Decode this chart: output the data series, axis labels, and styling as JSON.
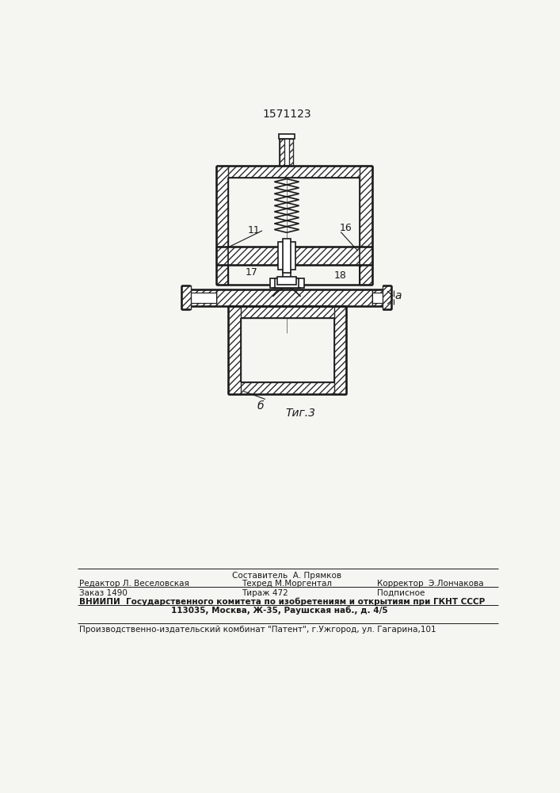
{
  "title": "1571123",
  "fig_label": "Τиг.3",
  "label_a": "a",
  "label_b": "б",
  "footer_line1_center": "Составитель  А. Прямков",
  "footer_line2_left": "Редактор Л. Веселовская",
  "footer_line2_center": "Техред М.Моргентал",
  "footer_line2_right": "Корректор  Э.Лончакова",
  "footer_line3_left": "Заказ 1490",
  "footer_line3_center": "Тираж 472",
  "footer_line3_right": "Подписное",
  "footer_line4": "ВНИИПИ  Государственного комитета по изобретениям и открытиям при ГКНТ СССР",
  "footer_line5": "113035, Москва, Ж-35, Раушская наб., д. 4/5",
  "footer_line6": "Производственно-издательский комбинат \"Патент\", г.Ужгород, ул. Гагарина,101",
  "bg_color": "#f5f5f2",
  "line_color": "#1a1a1a"
}
